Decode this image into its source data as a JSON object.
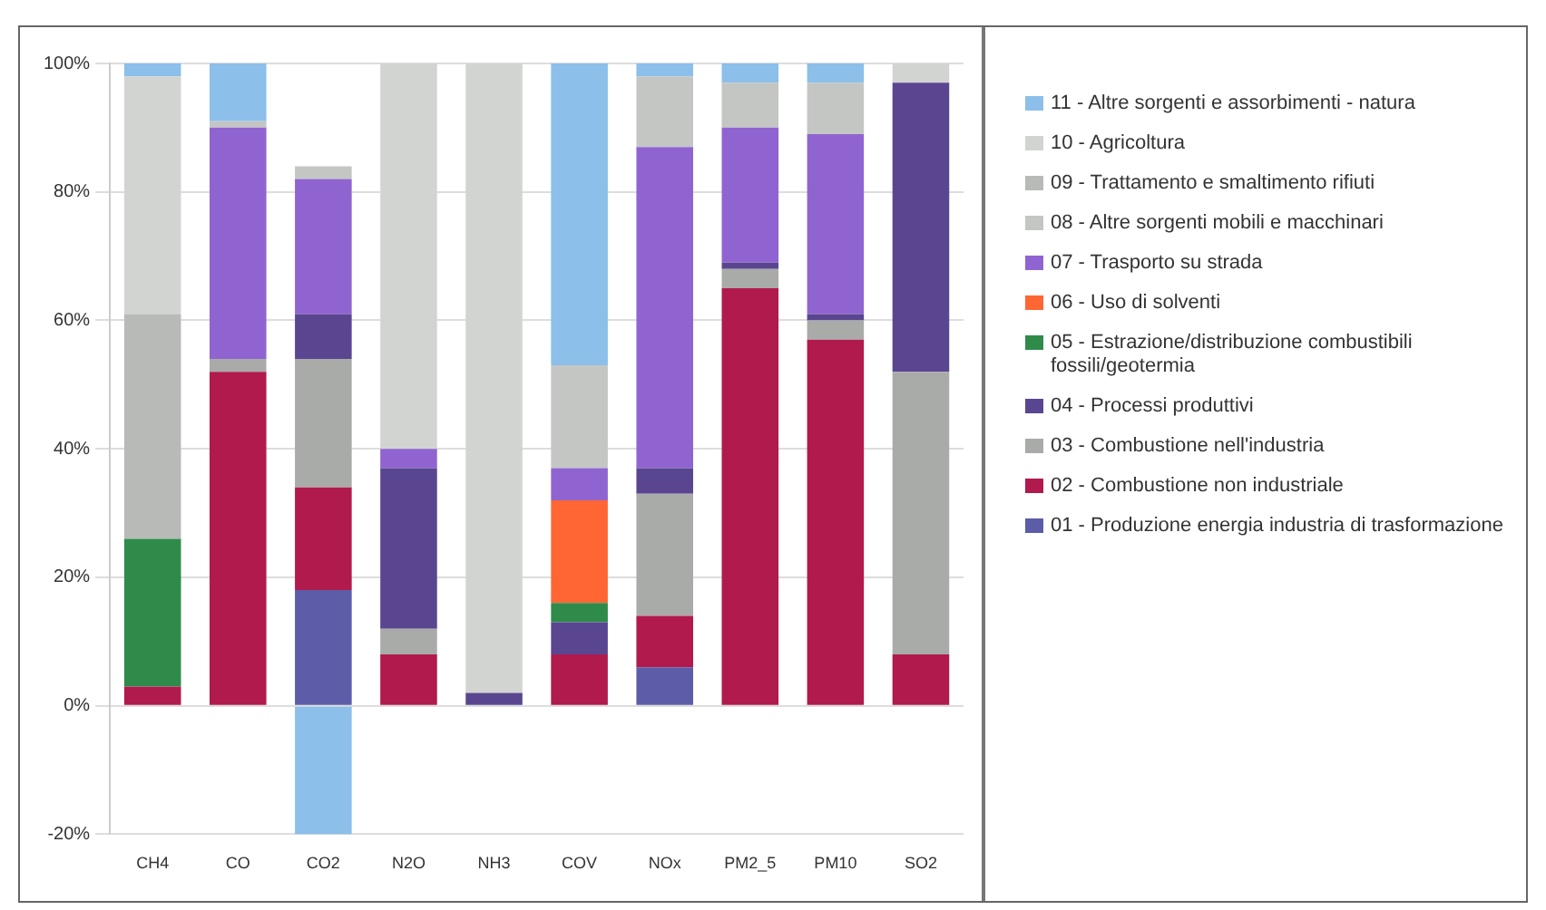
{
  "chart_data": {
    "type": "bar",
    "stacked": true,
    "categories": [
      "CH4",
      "CO",
      "CO2",
      "N2O",
      "NH3",
      "COV",
      "NOx",
      "PM2_5",
      "PM10",
      "SO2"
    ],
    "ylim": [
      -20,
      100
    ],
    "yticks": [
      {
        "value": -20,
        "label": "-20%"
      },
      {
        "value": 0,
        "label": "0%"
      },
      {
        "value": 20,
        "label": "20%"
      },
      {
        "value": 40,
        "label": "40%"
      },
      {
        "value": 60,
        "label": "60%"
      },
      {
        "value": 80,
        "label": "80%"
      },
      {
        "value": 100,
        "label": "100%"
      }
    ],
    "grid": "y",
    "legend": "right",
    "series": [
      {
        "name": "01 - Produzione energia industria di trasformazione",
        "color": "#5c5ca8",
        "values": [
          0,
          0,
          18,
          0,
          0,
          0,
          6,
          0,
          0,
          0
        ]
      },
      {
        "name": "02 - Combustione non industriale",
        "color": "#b01a4c",
        "values": [
          3,
          52,
          16,
          8,
          0,
          8,
          8,
          65,
          57,
          8
        ]
      },
      {
        "name": "03 - Combustione nell'industria",
        "color": "#a9aba9",
        "values": [
          0,
          2,
          20,
          4,
          0,
          0,
          19,
          3,
          3,
          44
        ]
      },
      {
        "name": "04 - Processi produttivi",
        "color": "#5a4690",
        "values": [
          0,
          0,
          7,
          25,
          2,
          5,
          4,
          1,
          1,
          45
        ]
      },
      {
        "name": "05 - Estrazione/distribuzione combustibili fossili/geotermia",
        "color": "#2e8b4a",
        "values": [
          23,
          0,
          0,
          0,
          0,
          3,
          0,
          0,
          0,
          0
        ]
      },
      {
        "name": "06 - Uso di solventi",
        "color": "#ff6633",
        "values": [
          0,
          0,
          0,
          0,
          0,
          16,
          0,
          0,
          0,
          0
        ]
      },
      {
        "name": "07 - Trasporto su strada",
        "color": "#9064d0",
        "values": [
          0,
          36,
          21,
          3,
          0,
          5,
          50,
          21,
          28,
          0
        ]
      },
      {
        "name": "08 - Altre sorgenti mobili e macchinari",
        "color": "#c4c6c4",
        "values": [
          0,
          1,
          2,
          0,
          0,
          16,
          11,
          7,
          8,
          0
        ]
      },
      {
        "name": "09 - Trattamento e smaltimento rifiuti",
        "color": "#b8bab8",
        "values": [
          35,
          0,
          0,
          0,
          0,
          0,
          0,
          0,
          0,
          0
        ]
      },
      {
        "name": "10 - Agricoltura",
        "color": "#d2d4d2",
        "values": [
          37,
          0,
          0,
          60,
          98,
          0,
          0,
          0,
          0,
          3
        ]
      },
      {
        "name": "11 - Altre sorgenti e assorbimenti - natura",
        "color": "#8cbfea",
        "values": [
          2,
          9,
          -20,
          0,
          0,
          47,
          2,
          3,
          3,
          0
        ]
      }
    ]
  }
}
